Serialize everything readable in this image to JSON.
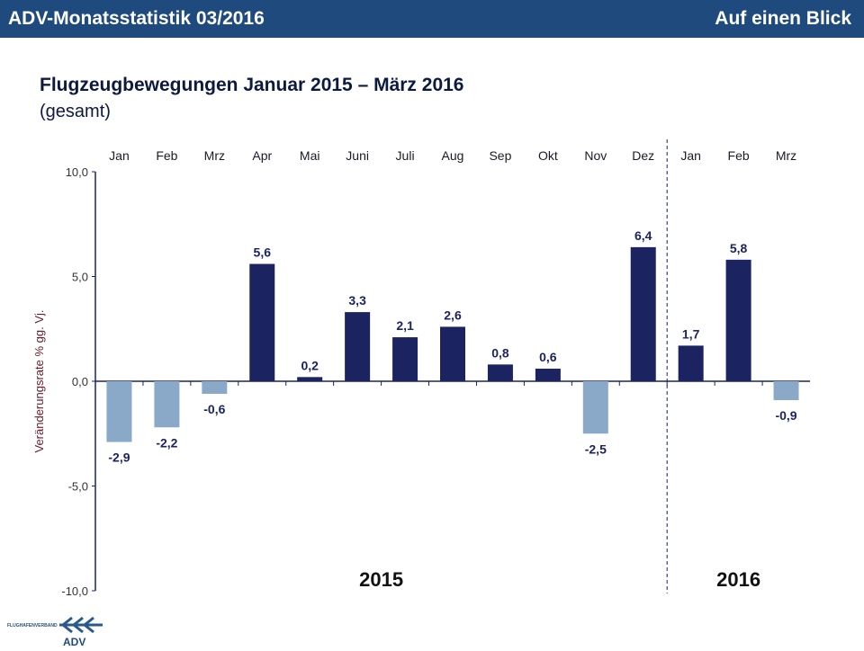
{
  "header": {
    "left": "ADV-Monatsstatistik 03/2016",
    "right": "Auf einen Blick"
  },
  "title": "Flugzeugbewegungen Januar 2015 – März 2016",
  "subtitle": "(gesamt)",
  "logo_text": "FLUGHAFENVERBAND ADV",
  "chart_data": {
    "type": "bar",
    "categories": [
      "Jan",
      "Feb",
      "Mrz",
      "Apr",
      "Mai",
      "Juni",
      "Juli",
      "Aug",
      "Sep",
      "Okt",
      "Nov",
      "Dez",
      "Jan",
      "Feb",
      "Mrz"
    ],
    "values": [
      -2.9,
      -2.2,
      -0.6,
      5.6,
      0.2,
      3.3,
      2.1,
      2.6,
      0.8,
      0.6,
      -2.5,
      6.4,
      1.7,
      5.8,
      -0.9
    ],
    "value_labels": [
      "-2,9",
      "-2,2",
      "-0,6",
      "5,6",
      "0,2",
      "3,3",
      "2,1",
      "2,6",
      "0,8",
      "0,6",
      "-2,5",
      "6,4",
      "1,7",
      "5,8",
      "-0,9"
    ],
    "ylabel": "Veränderungsrate % gg. Vj.",
    "ylim": [
      -10,
      10
    ],
    "yticks": [
      10,
      5,
      0,
      -5,
      -10
    ],
    "ytick_labels": [
      "10,0",
      "5,0",
      "0,0",
      "-5,0",
      "-10,0"
    ],
    "groups": [
      "2015",
      "2016"
    ],
    "colors": {
      "positive": "#1b2461",
      "negative": "#8aa8c8",
      "axis": "#1b2461"
    },
    "grid": false,
    "legend": "none"
  }
}
